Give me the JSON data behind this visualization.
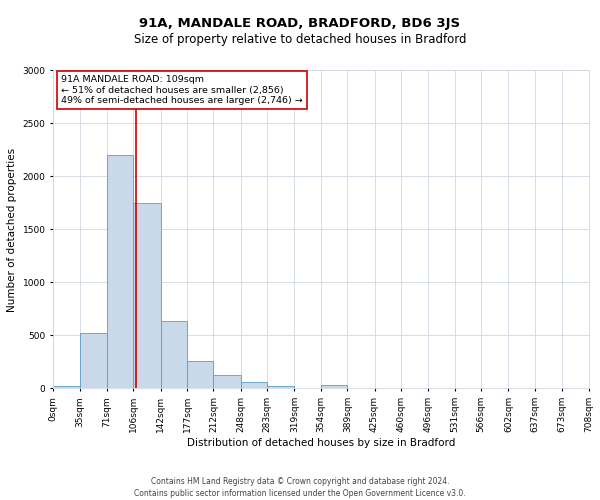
{
  "title": "91A, MANDALE ROAD, BRADFORD, BD6 3JS",
  "subtitle": "Size of property relative to detached houses in Bradford",
  "xlabel": "Distribution of detached houses by size in Bradford",
  "ylabel": "Number of detached properties",
  "bar_color": "#c9d9ea",
  "bar_edge_color": "#5a9ec8",
  "vline_x": 109,
  "vline_color": "#cc0000",
  "annotation_lines": [
    "91A MANDALE ROAD: 109sqm",
    "← 51% of detached houses are smaller (2,856)",
    "49% of semi-detached houses are larger (2,746) →"
  ],
  "bin_edges": [
    0,
    35,
    71,
    106,
    142,
    177,
    212,
    248,
    283,
    319,
    354,
    389,
    425,
    460,
    496,
    531,
    566,
    602,
    637,
    673,
    708
  ],
  "bar_heights": [
    20,
    520,
    2200,
    1750,
    640,
    260,
    130,
    65,
    20,
    5,
    35,
    5,
    0,
    0,
    0,
    0,
    0,
    0,
    0,
    0
  ],
  "tick_labels": [
    "0sqm",
    "35sqm",
    "71sqm",
    "106sqm",
    "142sqm",
    "177sqm",
    "212sqm",
    "248sqm",
    "283sqm",
    "319sqm",
    "354sqm",
    "389sqm",
    "425sqm",
    "460sqm",
    "496sqm",
    "531sqm",
    "566sqm",
    "602sqm",
    "637sqm",
    "673sqm",
    "708sqm"
  ],
  "ylim": [
    0,
    3000
  ],
  "yticks": [
    0,
    500,
    1000,
    1500,
    2000,
    2500,
    3000
  ],
  "footer_lines": [
    "Contains HM Land Registry data © Crown copyright and database right 2024.",
    "Contains public sector information licensed under the Open Government Licence v3.0."
  ],
  "background_color": "#ffffff",
  "grid_color": "#d0d8e4",
  "annotation_box_edge_color": "#cc0000",
  "title_fontsize": 9.5,
  "subtitle_fontsize": 8.5,
  "axis_label_fontsize": 7.5,
  "tick_fontsize": 6.5,
  "ann_fontsize": 6.8,
  "footer_fontsize": 5.5
}
